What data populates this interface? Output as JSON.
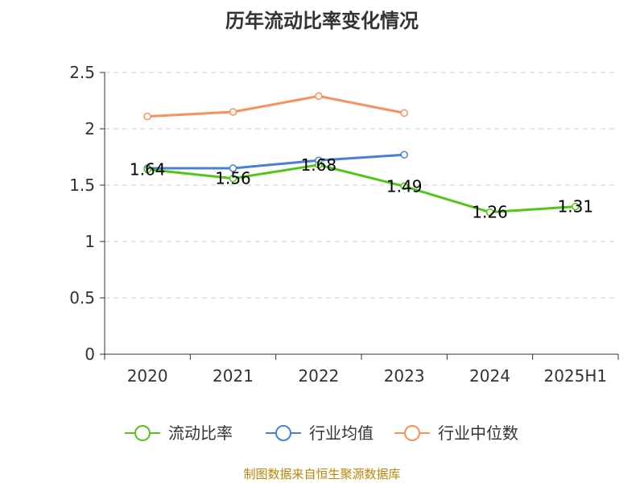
{
  "chart_data": {
    "type": "line",
    "title": "历年流动比率变化情况",
    "categories": [
      "2020",
      "2021",
      "2022",
      "2023",
      "2024",
      "2025H1"
    ],
    "ylim": [
      0,
      2.5
    ],
    "yticks": [
      "0",
      "0.5",
      "1",
      "1.5",
      "2",
      "2.5"
    ],
    "grid": true,
    "legend_position": "bottom",
    "series": [
      {
        "name": "流动比率",
        "color": "#52c41a",
        "values": [
          1.64,
          1.56,
          1.68,
          1.49,
          1.26,
          1.31
        ],
        "labels": [
          "1.64",
          "1.56",
          "1.68",
          "1.49",
          "1.26",
          "1.31"
        ]
      },
      {
        "name": "行业均值",
        "color": "#4a7fd6",
        "values": [
          1.65,
          1.65,
          1.72,
          1.77,
          null,
          null
        ]
      },
      {
        "name": "行业中位数",
        "color": "#f7905a",
        "values": [
          2.11,
          2.15,
          2.29,
          2.14,
          null,
          null
        ]
      }
    ]
  },
  "source": "制图数据来自恒生聚源数据库"
}
